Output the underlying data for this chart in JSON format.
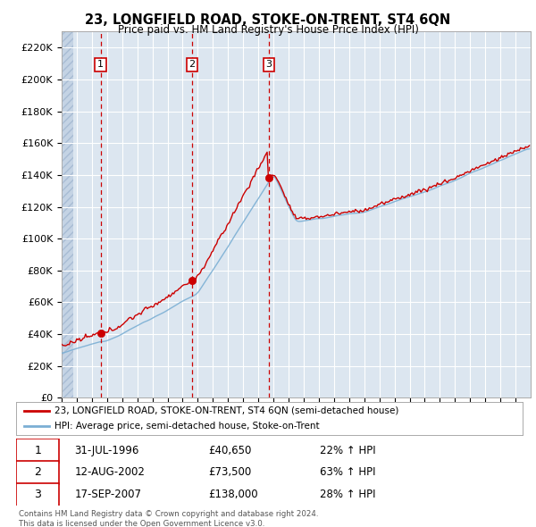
{
  "title": "23, LONGFIELD ROAD, STOKE-ON-TRENT, ST4 6QN",
  "subtitle": "Price paid vs. HM Land Registry's House Price Index (HPI)",
  "background_color": "#ffffff",
  "plot_bg_color": "#dce6f0",
  "grid_color": "#ffffff",
  "red_line_color": "#cc0000",
  "blue_line_color": "#7bafd4",
  "sale_marker_color": "#cc0000",
  "sale_years": [
    1996.583,
    2002.617,
    2007.708
  ],
  "sale_prices": [
    40650,
    73500,
    138000
  ],
  "sale_labels": [
    "1",
    "2",
    "3"
  ],
  "sale_pcts": [
    "22% ↑ HPI",
    "63% ↑ HPI",
    "28% ↑ HPI"
  ],
  "sale_date_strs": [
    "31-JUL-1996",
    "12-AUG-2002",
    "17-SEP-2007"
  ],
  "sale_price_strs": [
    "£40,650",
    "£73,500",
    "£138,000"
  ],
  "vline_color": "#cc0000",
  "legend_red_label": "23, LONGFIELD ROAD, STOKE-ON-TRENT, ST4 6QN (semi-detached house)",
  "legend_blue_label": "HPI: Average price, semi-detached house, Stoke-on-Trent",
  "footer": "Contains HM Land Registry data © Crown copyright and database right 2024.\nThis data is licensed under the Open Government Licence v3.0.",
  "ylim": [
    0,
    230000
  ],
  "yticks": [
    0,
    20000,
    40000,
    60000,
    80000,
    100000,
    120000,
    140000,
    160000,
    180000,
    200000,
    220000
  ],
  "ytick_labels": [
    "£0",
    "£20K",
    "£40K",
    "£60K",
    "£80K",
    "£100K",
    "£120K",
    "£140K",
    "£160K",
    "£180K",
    "£200K",
    "£220K"
  ],
  "xmin": 1994.0,
  "xmax": 2025.0
}
